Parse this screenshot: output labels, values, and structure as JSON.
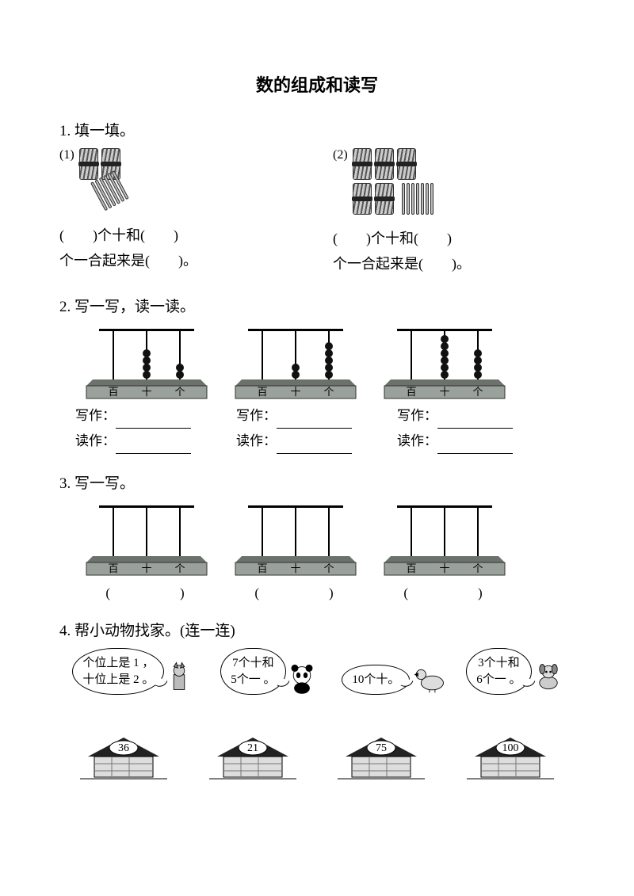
{
  "title": "数的组成和读写",
  "q1": {
    "heading": "1. 填一填。",
    "items": [
      {
        "label": "(1)",
        "bundles_rows": [
          2
        ],
        "loose_sticks": 6,
        "sticks_slanted": true,
        "line1_a": "(　　)个十和(　　)",
        "line2": "个一合起来是(　　)。"
      },
      {
        "label": "(2)",
        "bundles_rows": [
          3,
          2
        ],
        "loose_sticks": 7,
        "sticks_slanted": false,
        "line1_a": "(　　)个十和(　　)",
        "line2": "个一合起来是(　　)。"
      }
    ]
  },
  "q2": {
    "heading": "2. 写一写，读一读。",
    "abaci": [
      {
        "beads": [
          0,
          4,
          2
        ]
      },
      {
        "beads": [
          0,
          2,
          5
        ]
      },
      {
        "beads": [
          0,
          6,
          4
        ]
      }
    ],
    "write_label": "写作：",
    "read_label": "读作：",
    "place_labels": [
      "百",
      "十",
      "个"
    ]
  },
  "q3": {
    "heading": "3. 写一写。",
    "abaci": [
      {
        "beads": [
          0,
          0,
          0
        ]
      },
      {
        "beads": [
          0,
          0,
          0
        ]
      },
      {
        "beads": [
          0,
          0,
          0
        ]
      }
    ],
    "paren": "(　　　　)",
    "place_labels": [
      "百",
      "十",
      "个"
    ]
  },
  "q4": {
    "heading": "4. 帮小动物找家。(连一连)",
    "bubbles": [
      {
        "text": "个位上是 1 ，\n十位上是 2 。",
        "animal": "cat"
      },
      {
        "text": "7个十和\n5个一 。",
        "animal": "panda"
      },
      {
        "text": "10个十。",
        "animal": "duck"
      },
      {
        "text": "3个十和\n6个一 。",
        "animal": "dog"
      }
    ],
    "houses": [
      "36",
      "21",
      "75",
      "100"
    ]
  },
  "colors": {
    "ink": "#000000",
    "paper": "#ffffff",
    "abacus_base": "#9aa19a",
    "abacus_base_dark": "#6b726b",
    "bead": "#111111",
    "rod": "#000000",
    "house_roof": "#222222",
    "house_wall": "#dddddd"
  }
}
